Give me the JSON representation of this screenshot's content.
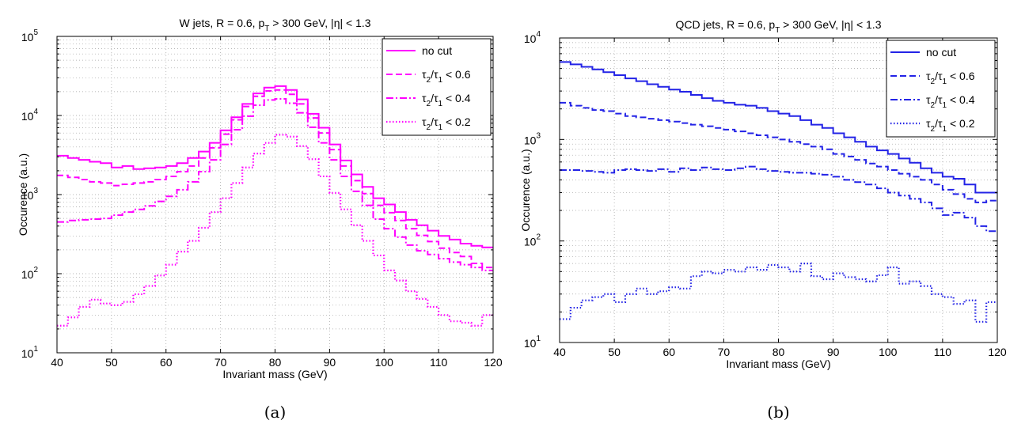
{
  "chart_data": [
    {
      "type": "line",
      "step": true,
      "title": "W jets, R = 0.6, p_T > 300 GeV, |η| < 1.3",
      "title_parts": [
        "W jets, R = 0.6, p",
        "T",
        " > 300 GeV, |η| < 1.3"
      ],
      "xlabel": "Invariant mass (GeV)",
      "ylabel": "Occurence (a.u.)",
      "caption": "(a)",
      "xlim": [
        40,
        120
      ],
      "ylim": [
        10,
        100000
      ],
      "yscale": "log",
      "grid": true,
      "legend_position": "top-right",
      "color": "#ff00ff",
      "xticks": [
        "40",
        "50",
        "60",
        "70",
        "80",
        "90",
        "100",
        "110",
        "120"
      ],
      "yticks": [
        {
          "base": "10",
          "exp": "1"
        },
        {
          "base": "10",
          "exp": "2"
        },
        {
          "base": "10",
          "exp": "3"
        },
        {
          "base": "10",
          "exp": "4"
        },
        {
          "base": "10",
          "exp": "5"
        }
      ],
      "bin_edges": [
        40,
        42,
        44,
        46,
        48,
        50,
        52,
        54,
        56,
        58,
        60,
        62,
        64,
        66,
        68,
        70,
        72,
        74,
        76,
        78,
        80,
        82,
        84,
        86,
        88,
        90,
        92,
        94,
        96,
        98,
        100,
        102,
        104,
        106,
        108,
        110,
        112,
        114,
        116,
        118,
        120
      ],
      "series": [
        {
          "name": "no cut",
          "tau_text": "",
          "cut": "",
          "style": "solid",
          "values": [
            3100,
            2900,
            2750,
            2600,
            2500,
            2200,
            2300,
            2100,
            2150,
            2200,
            2300,
            2500,
            2900,
            3500,
            4500,
            6500,
            9500,
            14000,
            19000,
            22500,
            23500,
            21000,
            16000,
            10500,
            7000,
            4300,
            2700,
            1800,
            1250,
            900,
            750,
            600,
            480,
            410,
            350,
            300,
            270,
            240,
            225,
            215
          ]
        },
        {
          "name": "τ2/τ1 < 0.6",
          "tau_text": "τ",
          "cut": "< 0.6",
          "style": "dashed",
          "values": [
            1750,
            1650,
            1550,
            1450,
            1400,
            1300,
            1350,
            1400,
            1450,
            1550,
            1700,
            1950,
            2300,
            2900,
            3900,
            5800,
            8800,
            13000,
            17500,
            20500,
            21000,
            18500,
            14000,
            9300,
            6000,
            3700,
            2300,
            1500,
            1030,
            730,
            590,
            470,
            370,
            305,
            255,
            210,
            185,
            165,
            135,
            120
          ]
        },
        {
          "name": "τ2/τ1 < 0.4",
          "tau_text": "τ",
          "cut": "< 0.4",
          "style": "dashdot",
          "values": [
            450,
            470,
            480,
            490,
            500,
            550,
            600,
            650,
            720,
            820,
            950,
            1150,
            1450,
            1950,
            2750,
            4300,
            6600,
            9800,
            13500,
            15700,
            16200,
            14300,
            10800,
            7100,
            4500,
            2750,
            1700,
            1100,
            730,
            490,
            370,
            290,
            230,
            195,
            175,
            155,
            140,
            130,
            120,
            110
          ]
        },
        {
          "name": "τ2/τ1 < 0.2",
          "tau_text": "τ",
          "cut": "< 0.2",
          "style": "dotted",
          "values": [
            22,
            28,
            38,
            47,
            42,
            40,
            44,
            55,
            70,
            95,
            130,
            190,
            260,
            380,
            600,
            900,
            1400,
            2200,
            3300,
            4500,
            5700,
            5400,
            4100,
            2800,
            1700,
            1050,
            650,
            410,
            260,
            170,
            110,
            82,
            60,
            48,
            38,
            30,
            25,
            24,
            22,
            30
          ]
        }
      ]
    },
    {
      "type": "line",
      "step": true,
      "title": "QCD jets, R = 0.6, p_T > 300 GeV, |η| < 1.3",
      "title_parts": [
        "QCD jets, R = 0.6, p",
        "T",
        " > 300 GeV, |η| < 1.3"
      ],
      "xlabel": "Invariant mass (GeV)",
      "ylabel": "Occurence (a.u.)",
      "caption": "(b)",
      "xlim": [
        40,
        120
      ],
      "ylim": [
        10,
        10000
      ],
      "yscale": "log",
      "grid": true,
      "legend_position": "top-right",
      "color": "#2323e6",
      "xticks": [
        "40",
        "50",
        "60",
        "70",
        "80",
        "90",
        "100",
        "110",
        "120"
      ],
      "yticks": [
        {
          "base": "10",
          "exp": "1"
        },
        {
          "base": "10",
          "exp": "2"
        },
        {
          "base": "10",
          "exp": "3"
        },
        {
          "base": "10",
          "exp": "4"
        }
      ],
      "bin_edges": [
        40,
        42,
        44,
        46,
        48,
        50,
        52,
        54,
        56,
        58,
        60,
        62,
        64,
        66,
        68,
        70,
        72,
        74,
        76,
        78,
        80,
        82,
        84,
        86,
        88,
        90,
        92,
        94,
        96,
        98,
        100,
        102,
        104,
        106,
        108,
        110,
        112,
        114,
        116,
        118,
        120
      ],
      "series": [
        {
          "name": "no cut",
          "tau_text": "",
          "cut": "",
          "style": "solid",
          "values": [
            5800,
            5500,
            5200,
            4900,
            4600,
            4300,
            4000,
            3750,
            3500,
            3300,
            3100,
            2950,
            2750,
            2550,
            2400,
            2300,
            2200,
            2150,
            2050,
            1900,
            1800,
            1700,
            1550,
            1400,
            1300,
            1150,
            1050,
            950,
            850,
            780,
            720,
            650,
            590,
            520,
            470,
            430,
            410,
            360,
            300,
            300
          ]
        },
        {
          "name": "τ2/τ1 < 0.6",
          "tau_text": "τ",
          "cut": "< 0.6",
          "style": "dashed",
          "values": [
            2300,
            2150,
            2050,
            1950,
            1900,
            1800,
            1700,
            1650,
            1600,
            1550,
            1500,
            1450,
            1400,
            1350,
            1300,
            1250,
            1200,
            1150,
            1100,
            1050,
            1000,
            950,
            900,
            850,
            800,
            720,
            680,
            630,
            580,
            540,
            500,
            460,
            430,
            400,
            360,
            320,
            290,
            260,
            240,
            250
          ]
        },
        {
          "name": "τ2/τ1 < 0.4",
          "tau_text": "τ",
          "cut": "< 0.4",
          "style": "dashdot",
          "values": [
            500,
            500,
            490,
            480,
            470,
            500,
            510,
            500,
            490,
            510,
            480,
            520,
            500,
            530,
            510,
            500,
            520,
            540,
            510,
            490,
            480,
            470,
            470,
            460,
            450,
            430,
            400,
            380,
            360,
            330,
            300,
            280,
            260,
            240,
            210,
            180,
            190,
            170,
            140,
            125
          ]
        },
        {
          "name": "τ2/τ1 < 0.2",
          "tau_text": "τ",
          "cut": "< 0.2",
          "style": "dotted",
          "values": [
            17,
            22,
            26,
            28,
            30,
            25,
            30,
            34,
            30,
            32,
            35,
            34,
            45,
            50,
            48,
            52,
            50,
            55,
            52,
            58,
            55,
            50,
            60,
            45,
            42,
            48,
            44,
            42,
            40,
            46,
            55,
            38,
            40,
            36,
            30,
            28,
            24,
            26,
            16,
            25
          ]
        }
      ]
    }
  ]
}
